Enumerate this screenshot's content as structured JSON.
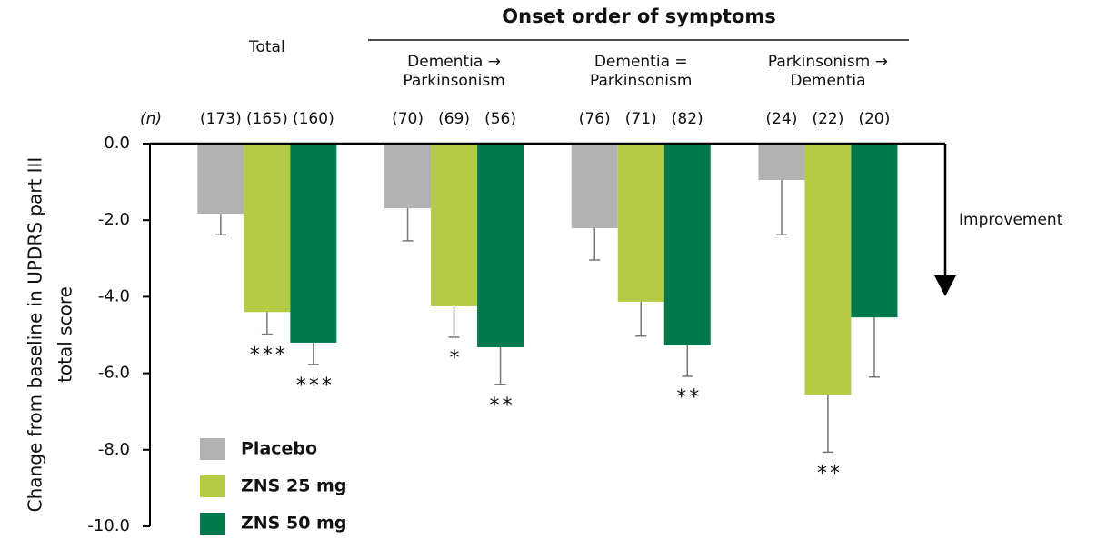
{
  "chart_data": {
    "type": "bar",
    "title": "Onset order of symptoms",
    "y_label_lines": [
      "Change from baseline in UPDRS part III",
      "total score"
    ],
    "n_header": "(n)",
    "annotation": "Improvement",
    "categories": [
      [
        "Total"
      ],
      [
        "Dementia →",
        "Parkinsonism"
      ],
      [
        "Dementia =",
        "Parkinsonism"
      ],
      [
        "Parkinsonism →",
        "Dementia"
      ]
    ],
    "ylim": [
      -10,
      0
    ],
    "yticks": [
      {
        "value": 0,
        "label": "0.0"
      },
      {
        "value": -2,
        "label": "-2.0"
      },
      {
        "value": -4,
        "label": "-4.0"
      },
      {
        "value": -6,
        "label": "-6.0"
      },
      {
        "value": -8,
        "label": "-8.0"
      },
      {
        "value": -10,
        "label": "-10.0"
      }
    ],
    "series": [
      {
        "name": "Placebo",
        "color": "#b2b2b2",
        "values": [
          -1.83,
          -1.69,
          -2.21,
          -0.95
        ],
        "errors": [
          0.55,
          0.85,
          0.83,
          1.43
        ],
        "n_labels": [
          "(173)",
          "(70)",
          "(76)",
          "(24)"
        ],
        "sig_labels": [
          null,
          null,
          null,
          null
        ]
      },
      {
        "name": "ZNS 25 mg",
        "color": "#b5cb45",
        "values": [
          -4.4,
          -4.25,
          -4.13,
          -6.56
        ],
        "errors": [
          0.58,
          0.81,
          0.9,
          1.5
        ],
        "n_labels": [
          "(165)",
          "(69)",
          "(71)",
          "(22)"
        ],
        "sig_labels": [
          "***",
          "*",
          null,
          "**"
        ]
      },
      {
        "name": "ZNS 50 mg",
        "color": "#007a4d",
        "values": [
          -5.2,
          -5.32,
          -5.27,
          -4.54
        ],
        "errors": [
          0.57,
          0.97,
          0.81,
          1.56
        ],
        "n_labels": [
          "(160)",
          "(56)",
          "(82)",
          "(20)"
        ],
        "sig_labels": [
          "***",
          "**",
          "**",
          null
        ]
      }
    ]
  }
}
